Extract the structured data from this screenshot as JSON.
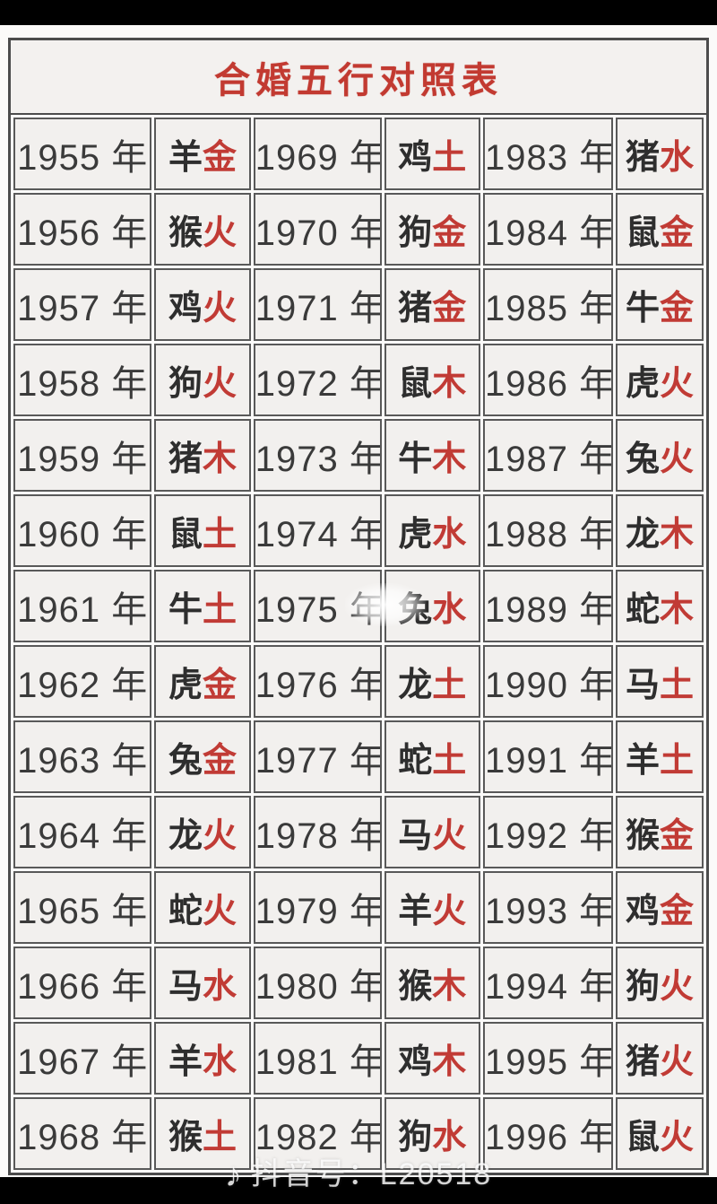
{
  "page": {
    "title": "合婚五行对照表",
    "year_suffix": "年",
    "watermark": {
      "icon": "douyin-note-icon",
      "text": "抖音号：L20518"
    },
    "colors": {
      "title_red": "#c23a31",
      "element_red": "#c13b35",
      "year_text": "#3a3a3a",
      "cell_bg": "#f2f0ee",
      "grid_line": "#595959",
      "background": "#000000"
    }
  },
  "table": {
    "rows": [
      [
        {
          "year": "1955",
          "animal": "羊",
          "element": "金"
        },
        {
          "year": "1969",
          "animal": "鸡",
          "element": "土"
        },
        {
          "year": "1983",
          "animal": "猪",
          "element": "水"
        }
      ],
      [
        {
          "year": "1956",
          "animal": "猴",
          "element": "火"
        },
        {
          "year": "1970",
          "animal": "狗",
          "element": "金"
        },
        {
          "year": "1984",
          "animal": "鼠",
          "element": "金"
        }
      ],
      [
        {
          "year": "1957",
          "animal": "鸡",
          "element": "火"
        },
        {
          "year": "1971",
          "animal": "猪",
          "element": "金"
        },
        {
          "year": "1985",
          "animal": "牛",
          "element": "金"
        }
      ],
      [
        {
          "year": "1958",
          "animal": "狗",
          "element": "火"
        },
        {
          "year": "1972",
          "animal": "鼠",
          "element": "木"
        },
        {
          "year": "1986",
          "animal": "虎",
          "element": "火"
        }
      ],
      [
        {
          "year": "1959",
          "animal": "猪",
          "element": "木"
        },
        {
          "year": "1973",
          "animal": "牛",
          "element": "木"
        },
        {
          "year": "1987",
          "animal": "兔",
          "element": "火"
        }
      ],
      [
        {
          "year": "1960",
          "animal": "鼠",
          "element": "土"
        },
        {
          "year": "1974",
          "animal": "虎",
          "element": "水"
        },
        {
          "year": "1988",
          "animal": "龙",
          "element": "木"
        }
      ],
      [
        {
          "year": "1961",
          "animal": "牛",
          "element": "土"
        },
        {
          "year": "1975",
          "animal": "兔",
          "element": "水"
        },
        {
          "year": "1989",
          "animal": "蛇",
          "element": "木"
        }
      ],
      [
        {
          "year": "1962",
          "animal": "虎",
          "element": "金"
        },
        {
          "year": "1976",
          "animal": "龙",
          "element": "土"
        },
        {
          "year": "1990",
          "animal": "马",
          "element": "土"
        }
      ],
      [
        {
          "year": "1963",
          "animal": "兔",
          "element": "金"
        },
        {
          "year": "1977",
          "animal": "蛇",
          "element": "土"
        },
        {
          "year": "1991",
          "animal": "羊",
          "element": "土"
        }
      ],
      [
        {
          "year": "1964",
          "animal": "龙",
          "element": "火"
        },
        {
          "year": "1978",
          "animal": "马",
          "element": "火"
        },
        {
          "year": "1992",
          "animal": "猴",
          "element": "金"
        }
      ],
      [
        {
          "year": "1965",
          "animal": "蛇",
          "element": "火"
        },
        {
          "year": "1979",
          "animal": "羊",
          "element": "火"
        },
        {
          "year": "1993",
          "animal": "鸡",
          "element": "金"
        }
      ],
      [
        {
          "year": "1966",
          "animal": "马",
          "element": "水"
        },
        {
          "year": "1980",
          "animal": "猴",
          "element": "木"
        },
        {
          "year": "1994",
          "animal": "狗",
          "element": "火"
        }
      ],
      [
        {
          "year": "1967",
          "animal": "羊",
          "element": "水"
        },
        {
          "year": "1981",
          "animal": "鸡",
          "element": "木"
        },
        {
          "year": "1995",
          "animal": "猪",
          "element": "火"
        }
      ],
      [
        {
          "year": "1968",
          "animal": "猴",
          "element": "土"
        },
        {
          "year": "1982",
          "animal": "狗",
          "element": "水"
        },
        {
          "year": "1996",
          "animal": "鼠",
          "element": "火"
        }
      ]
    ]
  }
}
